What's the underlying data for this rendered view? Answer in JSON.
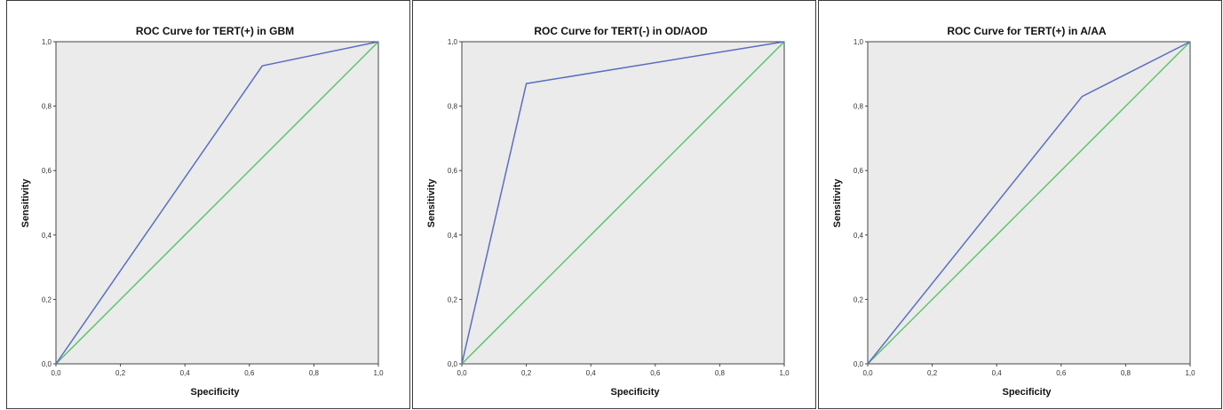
{
  "colors": {
    "plot_bg": "#ebebeb",
    "roc_curve": "#5a6fc0",
    "reference_line": "#5cc46a"
  },
  "chart_data": [
    {
      "type": "line",
      "title": "ROC Curve for TERT(+)  in GBM",
      "xlabel": "Specificity",
      "ylabel": "Sensitivity",
      "xlim": [
        0,
        1
      ],
      "ylim": [
        0,
        1
      ],
      "x_ticks": [
        "0,0",
        "0,2",
        "0,4",
        "0,6",
        "0,8",
        "1,0"
      ],
      "y_ticks": [
        "0,0",
        "0,2",
        "0,4",
        "0,6",
        "0,8",
        "1,0"
      ],
      "series": [
        {
          "x": [
            0.0,
            0.64,
            1.0
          ],
          "y": [
            0.0,
            0.925,
            1.0
          ]
        },
        {
          "x": [
            0.0,
            1.0
          ],
          "y": [
            0.0,
            1.0
          ]
        }
      ]
    },
    {
      "type": "line",
      "title": "ROC Curve for TERT(-) in OD/AOD",
      "xlabel": "Specificity",
      "ylabel": "Sensitivity",
      "xlim": [
        0,
        1
      ],
      "ylim": [
        0,
        1
      ],
      "x_ticks": [
        "0,0",
        "0,2",
        "0,4",
        "0,6",
        "0,8",
        "1,0"
      ],
      "y_ticks": [
        "0,0",
        "0,2",
        "0,4",
        "0,6",
        "0,8",
        "1,0"
      ],
      "series": [
        {
          "x": [
            0.0,
            0.2,
            1.0
          ],
          "y": [
            0.0,
            0.87,
            1.0
          ]
        },
        {
          "x": [
            0.0,
            1.0
          ],
          "y": [
            0.0,
            1.0
          ]
        }
      ]
    },
    {
      "type": "line",
      "title": "ROC Curve for TERT(+) in A/AA",
      "xlabel": "Specificity",
      "ylabel": "Sensitivity",
      "xlim": [
        0,
        1
      ],
      "ylim": [
        0,
        1
      ],
      "x_ticks": [
        "0,0",
        "0,2",
        "0,4",
        "0,6",
        "0,8",
        "1,0"
      ],
      "y_ticks": [
        "0,0",
        "0,2",
        "0,4",
        "0,6",
        "0,8",
        "1,0"
      ],
      "series": [
        {
          "x": [
            0.0,
            0.665,
            1.0
          ],
          "y": [
            0.0,
            0.83,
            1.0
          ]
        },
        {
          "x": [
            0.0,
            1.0
          ],
          "y": [
            0.0,
            1.0
          ]
        }
      ]
    }
  ]
}
